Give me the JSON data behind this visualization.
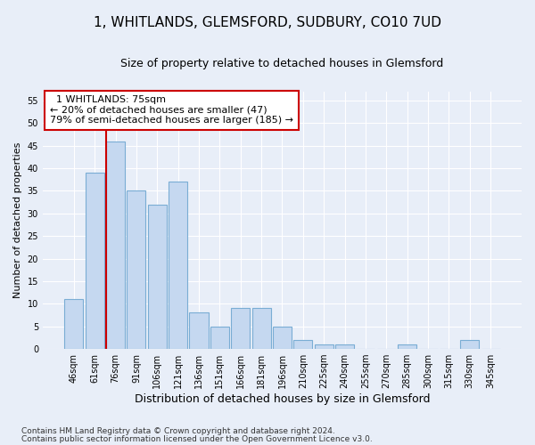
{
  "title": "1, WHITLANDS, GLEMSFORD, SUDBURY, CO10 7UD",
  "subtitle": "Size of property relative to detached houses in Glemsford",
  "xlabel": "Distribution of detached houses by size in Glemsford",
  "ylabel": "Number of detached properties",
  "footnote1": "Contains HM Land Registry data © Crown copyright and database right 2024.",
  "footnote2": "Contains public sector information licensed under the Open Government Licence v3.0.",
  "categories": [
    "46sqm",
    "61sqm",
    "76sqm",
    "91sqm",
    "106sqm",
    "121sqm",
    "136sqm",
    "151sqm",
    "166sqm",
    "181sqm",
    "196sqm",
    "210sqm",
    "225sqm",
    "240sqm",
    "255sqm",
    "270sqm",
    "285sqm",
    "300sqm",
    "315sqm",
    "330sqm",
    "345sqm"
  ],
  "values": [
    11,
    39,
    46,
    35,
    32,
    37,
    8,
    5,
    9,
    9,
    5,
    2,
    1,
    1,
    0,
    0,
    1,
    0,
    0,
    2,
    0
  ],
  "bar_color": "#c5d8f0",
  "bar_edge_color": "#7aadd4",
  "vline_color": "#cc0000",
  "annotation_text": "  1 WHITLANDS: 75sqm\n← 20% of detached houses are smaller (47)\n79% of semi-detached houses are larger (185) →",
  "annotation_box_color": "white",
  "annotation_box_edge": "#cc0000",
  "ylim": [
    0,
    57
  ],
  "yticks": [
    0,
    5,
    10,
    15,
    20,
    25,
    30,
    35,
    40,
    45,
    50,
    55
  ],
  "bg_color": "#e8eef8",
  "grid_color": "#ffffff",
  "title_fontsize": 11,
  "subtitle_fontsize": 9,
  "ylabel_fontsize": 8,
  "xlabel_fontsize": 9,
  "tick_fontsize": 7,
  "footnote_fontsize": 6.5
}
